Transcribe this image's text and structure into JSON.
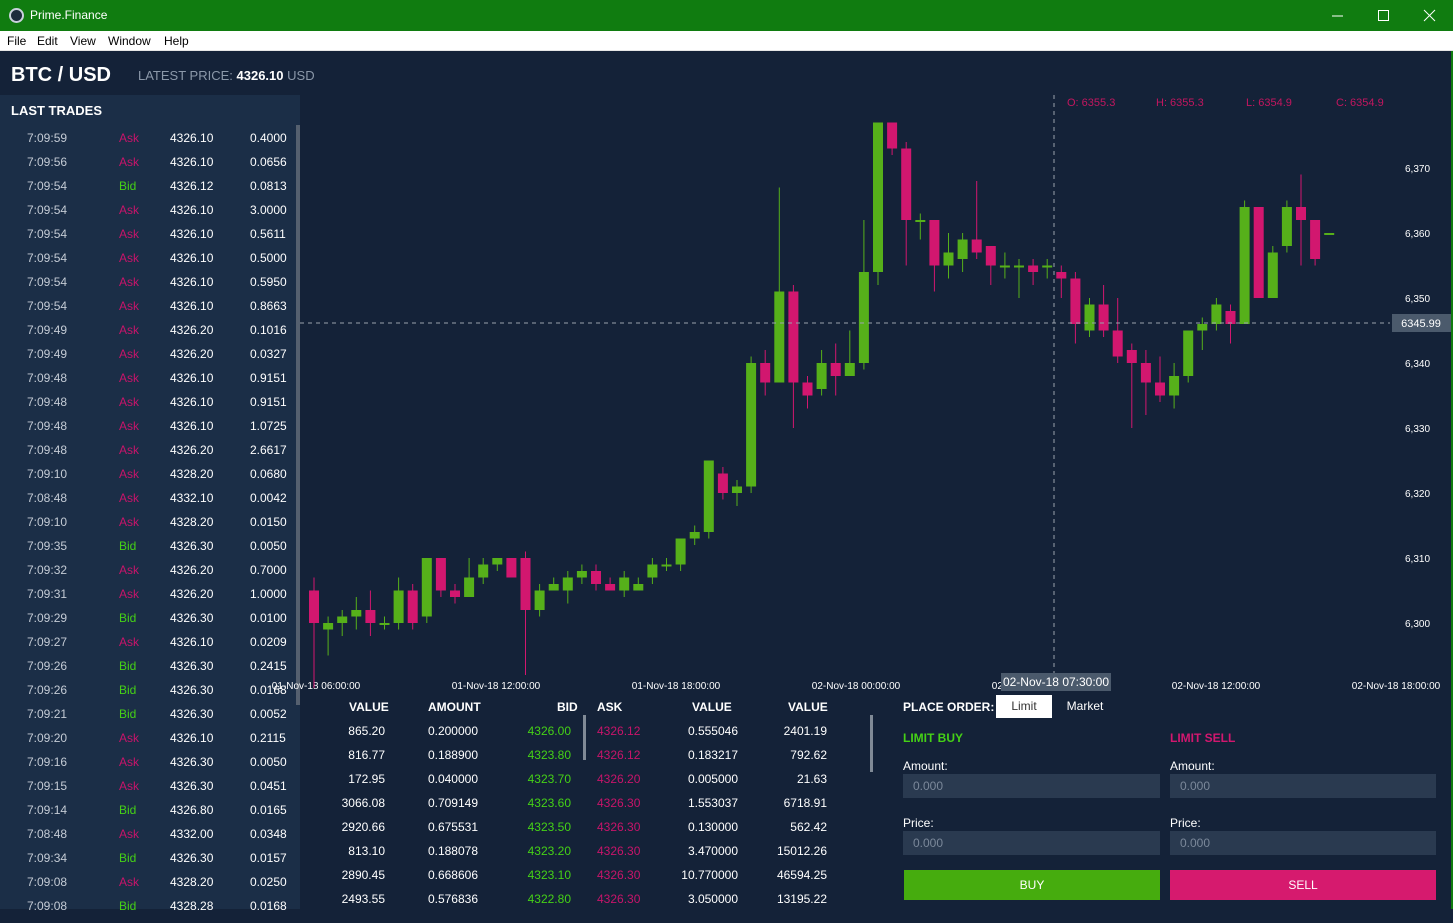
{
  "window": {
    "title": "Prime.Finance"
  },
  "menu": [
    "File",
    "Edit",
    "View",
    "Window",
    "Help"
  ],
  "header": {
    "pair": "BTC / USD",
    "latest_label": "LATEST PRICE:",
    "latest_value": "4326.10",
    "latest_unit": "USD"
  },
  "trades": {
    "title": "LAST TRADES",
    "rows": [
      [
        "7:09:59",
        "Ask",
        "4326.10",
        "0.4000"
      ],
      [
        "7:09:56",
        "Ask",
        "4326.10",
        "0.0656"
      ],
      [
        "7:09:54",
        "Bid",
        "4326.12",
        "0.0813"
      ],
      [
        "7:09:54",
        "Ask",
        "4326.10",
        "3.0000"
      ],
      [
        "7:09:54",
        "Ask",
        "4326.10",
        "0.5611"
      ],
      [
        "7:09:54",
        "Ask",
        "4326.10",
        "0.5000"
      ],
      [
        "7:09:54",
        "Ask",
        "4326.10",
        "0.5950"
      ],
      [
        "7:09:54",
        "Ask",
        "4326.10",
        "0.8663"
      ],
      [
        "7:09:49",
        "Ask",
        "4326.20",
        "0.1016"
      ],
      [
        "7:09:49",
        "Ask",
        "4326.20",
        "0.0327"
      ],
      [
        "7:09:48",
        "Ask",
        "4326.10",
        "0.9151"
      ],
      [
        "7:09:48",
        "Ask",
        "4326.10",
        "0.9151"
      ],
      [
        "7:09:48",
        "Ask",
        "4326.10",
        "1.0725"
      ],
      [
        "7:09:48",
        "Ask",
        "4326.20",
        "2.6617"
      ],
      [
        "7:09:10",
        "Ask",
        "4328.20",
        "0.0680"
      ],
      [
        "7:08:48",
        "Ask",
        "4332.10",
        "0.0042"
      ],
      [
        "7:09:10",
        "Ask",
        "4328.20",
        "0.0150"
      ],
      [
        "7:09:35",
        "Bid",
        "4326.30",
        "0.0050"
      ],
      [
        "7:09:32",
        "Ask",
        "4326.20",
        "0.7000"
      ],
      [
        "7:09:31",
        "Ask",
        "4326.20",
        "1.0000"
      ],
      [
        "7:09:29",
        "Bid",
        "4326.30",
        "0.0100"
      ],
      [
        "7:09:27",
        "Ask",
        "4326.10",
        "0.0209"
      ],
      [
        "7:09:26",
        "Bid",
        "4326.30",
        "0.2415"
      ],
      [
        "7:09:26",
        "Bid",
        "4326.30",
        "0.0168"
      ],
      [
        "7:09:21",
        "Bid",
        "4326.30",
        "0.0052"
      ],
      [
        "7:09:20",
        "Ask",
        "4326.10",
        "0.2115"
      ],
      [
        "7:09:16",
        "Ask",
        "4326.30",
        "0.0050"
      ],
      [
        "7:09:15",
        "Ask",
        "4326.30",
        "0.0451"
      ],
      [
        "7:09:14",
        "Bid",
        "4326.80",
        "0.0165"
      ],
      [
        "7:08:48",
        "Ask",
        "4332.00",
        "0.0348"
      ],
      [
        "7:09:34",
        "Bid",
        "4326.30",
        "0.0157"
      ],
      [
        "7:09:08",
        "Ask",
        "4328.20",
        "0.0250"
      ],
      [
        "7:09:08",
        "Bid",
        "4328.28",
        "0.0168"
      ]
    ]
  },
  "chart": {
    "ohlc": {
      "o": "O: 6355.3",
      "h": "H: 6355.3",
      "l": "L: 6354.9",
      "c": "C: 6354.9"
    },
    "y_ticks": [
      "6,370",
      "6,360",
      "6,350",
      "6,340",
      "6,330",
      "6,320",
      "6,310",
      "6,300"
    ],
    "x_ticks": [
      "01-Nov-18 06:00:00",
      "01-Nov-18 12:00:00",
      "01-Nov-18 18:00:00",
      "02-Nov-18 00:00:00",
      "02-Nov-18 06:00:00",
      "02-Nov-18 12:00:00",
      "02-Nov-18 18:00:00"
    ],
    "crosshair_price": "6345.99",
    "crosshair_time": "02-Nov-18 07:30:00",
    "colors": {
      "up": "#56b01a",
      "down": "#d2176f"
    }
  },
  "chart_data": {
    "type": "candlestick",
    "y_range": [
      6290,
      6380
    ],
    "candles": [
      [
        6305,
        6300,
        6307,
        6290
      ],
      [
        6299,
        6300,
        6301,
        6295
      ],
      [
        6300,
        6301,
        6302,
        6298
      ],
      [
        6301,
        6302,
        6304,
        6299
      ],
      [
        6302,
        6300,
        6305,
        6298
      ],
      [
        6300,
        6300,
        6301,
        6299
      ],
      [
        6300,
        6305,
        6307,
        6299
      ],
      [
        6305,
        6300,
        6306,
        6299
      ],
      [
        6301,
        6310,
        6310,
        6300
      ],
      [
        6310,
        6305,
        6310,
        6304
      ],
      [
        6305,
        6304,
        6306,
        6303
      ],
      [
        6304,
        6307,
        6310,
        6304
      ],
      [
        6307,
        6309,
        6310,
        6306
      ],
      [
        6309,
        6310,
        6310,
        6308
      ],
      [
        6310,
        6307,
        6310,
        6307
      ],
      [
        6310,
        6302,
        6311,
        6292
      ],
      [
        6302,
        6305,
        6306,
        6301
      ],
      [
        6305,
        6306,
        6307,
        6305
      ],
      [
        6305,
        6307,
        6308,
        6303
      ],
      [
        6307,
        6308,
        6309,
        6306
      ],
      [
        6308,
        6306,
        6309,
        6305
      ],
      [
        6306,
        6305,
        6307,
        6305
      ],
      [
        6305,
        6307,
        6308,
        6304
      ],
      [
        6305,
        6306,
        6307,
        6305
      ],
      [
        6307,
        6309,
        6310,
        6306
      ],
      [
        6309,
        6309,
        6310,
        6308
      ],
      [
        6309,
        6313,
        6313,
        6308
      ],
      [
        6313,
        6314,
        6315,
        6312
      ],
      [
        6314,
        6325,
        6325,
        6313
      ],
      [
        6323,
        6320,
        6324,
        6319
      ],
      [
        6320,
        6321,
        6322,
        6318
      ],
      [
        6321,
        6340,
        6341,
        6320
      ],
      [
        6340,
        6337,
        6342,
        6335
      ],
      [
        6337,
        6351,
        6367,
        6337
      ],
      [
        6351,
        6337,
        6352,
        6330
      ],
      [
        6337,
        6335,
        6338,
        6333
      ],
      [
        6336,
        6340,
        6342,
        6335
      ],
      [
        6340,
        6338,
        6343,
        6335
      ],
      [
        6338,
        6340,
        6345,
        6340
      ],
      [
        6340,
        6354,
        6362,
        6339
      ],
      [
        6354,
        6377,
        6377,
        6352
      ],
      [
        6377,
        6373,
        6377,
        6372
      ],
      [
        6373,
        6362,
        6374,
        6355
      ],
      [
        6362,
        6362,
        6363,
        6359
      ],
      [
        6362,
        6355,
        6362,
        6351
      ],
      [
        6355,
        6357,
        6360,
        6353
      ],
      [
        6356,
        6359,
        6360,
        6354
      ],
      [
        6359,
        6357,
        6368,
        6356
      ],
      [
        6358,
        6355,
        6358,
        6352
      ],
      [
        6355,
        6355,
        6357,
        6353
      ],
      [
        6355,
        6355,
        6356,
        6350
      ],
      [
        6355,
        6354,
        6356,
        6352
      ],
      [
        6355,
        6355,
        6356,
        6353
      ],
      [
        6354,
        6353,
        6355,
        6350
      ],
      [
        6353,
        6346,
        6354,
        6343
      ],
      [
        6345,
        6349,
        6350,
        6344
      ],
      [
        6349,
        6345,
        6352,
        6344
      ],
      [
        6345,
        6341,
        6350,
        6340
      ],
      [
        6342,
        6340,
        6343,
        6330
      ],
      [
        6340,
        6337,
        6342,
        6332
      ],
      [
        6337,
        6335,
        6341,
        6334
      ],
      [
        6335,
        6338,
        6340,
        6333
      ],
      [
        6338,
        6345,
        6345,
        6337
      ],
      [
        6345,
        6346,
        6347,
        6342
      ],
      [
        6346,
        6349,
        6350,
        6345
      ],
      [
        6348,
        6346,
        6349,
        6343
      ],
      [
        6346,
        6364,
        6365,
        6346
      ],
      [
        6364,
        6350,
        6364,
        6350
      ],
      [
        6350,
        6357,
        6358,
        6350
      ],
      [
        6358,
        6364,
        6365,
        6357
      ],
      [
        6364,
        6362,
        6369,
        6355
      ],
      [
        6362,
        6356,
        6362,
        6355
      ],
      [
        6360,
        6360,
        6360,
        6360
      ]
    ]
  },
  "orderbook": {
    "headers": [
      "VALUE",
      "AMOUNT",
      "BID",
      "ASK",
      "VALUE",
      "VALUE"
    ],
    "rows": [
      [
        "865.20",
        "0.200000",
        "4326.00",
        "4326.12",
        "0.555046",
        "2401.19"
      ],
      [
        "816.77",
        "0.188900",
        "4323.80",
        "4326.12",
        "0.183217",
        "792.62"
      ],
      [
        "172.95",
        "0.040000",
        "4323.70",
        "4326.20",
        "0.005000",
        "21.63"
      ],
      [
        "3066.08",
        "0.709149",
        "4323.60",
        "4326.30",
        "1.553037",
        "6718.91"
      ],
      [
        "2920.66",
        "0.675531",
        "4323.50",
        "4326.30",
        "0.130000",
        "562.42"
      ],
      [
        "813.10",
        "0.188078",
        "4323.20",
        "4326.30",
        "3.470000",
        "15012.26"
      ],
      [
        "2890.45",
        "0.668606",
        "4323.10",
        "4326.30",
        "10.770000",
        "46594.25"
      ],
      [
        "2493.55",
        "0.576836",
        "4322.80",
        "4326.30",
        "3.050000",
        "13195.22"
      ]
    ]
  },
  "order": {
    "title": "PLACE ORDER:",
    "tab_limit": "Limit",
    "tab_market": "Market",
    "buy_title": "LIMIT BUY",
    "sell_title": "LIMIT SELL",
    "amount_label": "Amount:",
    "price_label": "Price:",
    "placeholder": "0.000",
    "buy_label": "BUY",
    "sell_label": "SELL"
  }
}
